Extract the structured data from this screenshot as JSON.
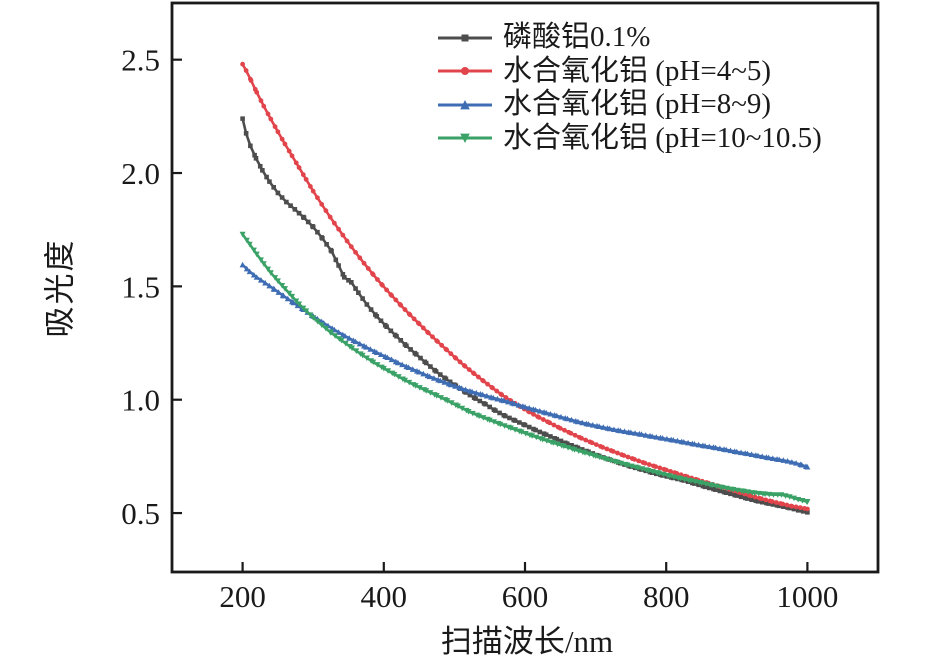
{
  "chart_data": {
    "type": "line",
    "title": "",
    "xlabel": "扫描波长/nm",
    "ylabel": "吸光度",
    "xlim": [
      100,
      1100
    ],
    "ylim": [
      0.24,
      2.75
    ],
    "xticks": [
      200,
      400,
      600,
      800,
      1000
    ],
    "ytick_values": [
      0.5,
      1.0,
      1.5,
      2.0,
      2.5
    ],
    "ytick_labels": [
      "0.5",
      "1.0",
      "1.5",
      "2.0",
      "2.5"
    ],
    "grid": false,
    "legend_position": "top-center-right",
    "axis_color": "#1a1a1a",
    "series": [
      {
        "name": "磷酸铝0.1%",
        "color": "#4d4d4d",
        "marker": "square",
        "points": [
          [
            200,
            2.24
          ],
          [
            205,
            2.175
          ],
          [
            211,
            2.12
          ],
          [
            219,
            2.065
          ],
          [
            228,
            2.012
          ],
          [
            238,
            1.962
          ],
          [
            250,
            1.912
          ],
          [
            262,
            1.872
          ],
          [
            274,
            1.84
          ],
          [
            287,
            1.803
          ],
          [
            300,
            1.762
          ],
          [
            313,
            1.712
          ],
          [
            326,
            1.655
          ],
          [
            336,
            1.592
          ],
          [
            344,
            1.54
          ],
          [
            354,
            1.518
          ],
          [
            364,
            1.472
          ],
          [
            376,
            1.42
          ],
          [
            390,
            1.368
          ],
          [
            404,
            1.322
          ],
          [
            418,
            1.28
          ],
          [
            432,
            1.238
          ],
          [
            446,
            1.2
          ],
          [
            460,
            1.162
          ],
          [
            474,
            1.125
          ],
          [
            488,
            1.092
          ],
          [
            502,
            1.062
          ],
          [
            516,
            1.032
          ],
          [
            530,
            1.005
          ],
          [
            544,
            0.98
          ],
          [
            558,
            0.952
          ],
          [
            572,
            0.928
          ],
          [
            586,
            0.908
          ],
          [
            600,
            0.888
          ],
          [
            615,
            0.866
          ],
          [
            630,
            0.846
          ],
          [
            645,
            0.826
          ],
          [
            660,
            0.806
          ],
          [
            675,
            0.788
          ],
          [
            690,
            0.77
          ],
          [
            705,
            0.752
          ],
          [
            720,
            0.736
          ],
          [
            735,
            0.72
          ],
          [
            750,
            0.705
          ],
          [
            765,
            0.692
          ],
          [
            780,
            0.678
          ],
          [
            795,
            0.666
          ],
          [
            810,
            0.655
          ],
          [
            825,
            0.644
          ],
          [
            840,
            0.63
          ],
          [
            855,
            0.616
          ],
          [
            870,
            0.603
          ],
          [
            885,
            0.59
          ],
          [
            900,
            0.577
          ],
          [
            915,
            0.564
          ],
          [
            930,
            0.552
          ],
          [
            945,
            0.542
          ],
          [
            960,
            0.532
          ],
          [
            975,
            0.522
          ],
          [
            988,
            0.512
          ],
          [
            1000,
            0.503
          ]
        ]
      },
      {
        "name": "水合氧化铝 (pH=4~5)",
        "color": "#e1444a",
        "marker": "circle",
        "points": [
          [
            200,
            2.48
          ],
          [
            205,
            2.452
          ],
          [
            212,
            2.408
          ],
          [
            220,
            2.356
          ],
          [
            230,
            2.295
          ],
          [
            240,
            2.238
          ],
          [
            250,
            2.182
          ],
          [
            260,
            2.128
          ],
          [
            270,
            2.076
          ],
          [
            280,
            2.024
          ],
          [
            290,
            1.972
          ],
          [
            300,
            1.92
          ],
          [
            312,
            1.862
          ],
          [
            324,
            1.806
          ],
          [
            336,
            1.752
          ],
          [
            348,
            1.7
          ],
          [
            360,
            1.65
          ],
          [
            372,
            1.602
          ],
          [
            385,
            1.552
          ],
          [
            398,
            1.505
          ],
          [
            411,
            1.46
          ],
          [
            424,
            1.417
          ],
          [
            437,
            1.375
          ],
          [
            450,
            1.335
          ],
          [
            463,
            1.295
          ],
          [
            476,
            1.257
          ],
          [
            489,
            1.22
          ],
          [
            502,
            1.183
          ],
          [
            515,
            1.148
          ],
          [
            528,
            1.115
          ],
          [
            541,
            1.083
          ],
          [
            554,
            1.052
          ],
          [
            567,
            1.022
          ],
          [
            580,
            0.995
          ],
          [
            593,
            0.97
          ],
          [
            606,
            0.946
          ],
          [
            620,
            0.922
          ],
          [
            635,
            0.898
          ],
          [
            650,
            0.874
          ],
          [
            665,
            0.852
          ],
          [
            680,
            0.83
          ],
          [
            695,
            0.81
          ],
          [
            710,
            0.79
          ],
          [
            725,
            0.772
          ],
          [
            740,
            0.754
          ],
          [
            755,
            0.737
          ],
          [
            770,
            0.72
          ],
          [
            785,
            0.705
          ],
          [
            800,
            0.69
          ],
          [
            815,
            0.675
          ],
          [
            830,
            0.66
          ],
          [
            845,
            0.646
          ],
          [
            860,
            0.632
          ],
          [
            875,
            0.618
          ],
          [
            890,
            0.604
          ],
          [
            905,
            0.59
          ],
          [
            920,
            0.576
          ],
          [
            935,
            0.563
          ],
          [
            950,
            0.551
          ],
          [
            965,
            0.54
          ],
          [
            978,
            0.53
          ],
          [
            990,
            0.524
          ],
          [
            1000,
            0.518
          ]
        ]
      },
      {
        "name": "水合氧化铝 (pH=8~9)",
        "color": "#3f6db4",
        "marker": "triangle-up",
        "points": [
          [
            200,
            1.595
          ],
          [
            210,
            1.565
          ],
          [
            220,
            1.54
          ],
          [
            232,
            1.515
          ],
          [
            245,
            1.487
          ],
          [
            258,
            1.458
          ],
          [
            272,
            1.428
          ],
          [
            286,
            1.398
          ],
          [
            300,
            1.368
          ],
          [
            315,
            1.338
          ],
          [
            330,
            1.308
          ],
          [
            345,
            1.281
          ],
          [
            360,
            1.256
          ],
          [
            375,
            1.232
          ],
          [
            390,
            1.208
          ],
          [
            405,
            1.186
          ],
          [
            420,
            1.163
          ],
          [
            435,
            1.142
          ],
          [
            450,
            1.122
          ],
          [
            465,
            1.102
          ],
          [
            480,
            1.084
          ],
          [
            495,
            1.066
          ],
          [
            510,
            1.05
          ],
          [
            525,
            1.035
          ],
          [
            540,
            1.022
          ],
          [
            555,
            1.008
          ],
          [
            570,
            0.996
          ],
          [
            585,
            0.982
          ],
          [
            600,
            0.968
          ],
          [
            615,
            0.955
          ],
          [
            630,
            0.942
          ],
          [
            645,
            0.929
          ],
          [
            660,
            0.916
          ],
          [
            675,
            0.903
          ],
          [
            690,
            0.892
          ],
          [
            705,
            0.882
          ],
          [
            720,
            0.872
          ],
          [
            735,
            0.863
          ],
          [
            750,
            0.855
          ],
          [
            765,
            0.847
          ],
          [
            780,
            0.838
          ],
          [
            795,
            0.83
          ],
          [
            810,
            0.822
          ],
          [
            825,
            0.813
          ],
          [
            840,
            0.804
          ],
          [
            855,
            0.796
          ],
          [
            870,
            0.788
          ],
          [
            885,
            0.779
          ],
          [
            900,
            0.77
          ],
          [
            915,
            0.762
          ],
          [
            930,
            0.753
          ],
          [
            945,
            0.744
          ],
          [
            960,
            0.736
          ],
          [
            972,
            0.729
          ],
          [
            984,
            0.72
          ],
          [
            992,
            0.712
          ],
          [
            1000,
            0.703
          ]
        ]
      },
      {
        "name": "水合氧化铝 (pH=10~10.5)",
        "color": "#3aa266",
        "marker": "triangle-down",
        "points": [
          [
            200,
            1.73
          ],
          [
            210,
            1.686
          ],
          [
            220,
            1.642
          ],
          [
            230,
            1.6
          ],
          [
            240,
            1.56
          ],
          [
            250,
            1.524
          ],
          [
            260,
            1.49
          ],
          [
            270,
            1.456
          ],
          [
            280,
            1.422
          ],
          [
            290,
            1.392
          ],
          [
            300,
            1.362
          ],
          [
            312,
            1.33
          ],
          [
            325,
            1.296
          ],
          [
            340,
            1.262
          ],
          [
            355,
            1.228
          ],
          [
            370,
            1.196
          ],
          [
            385,
            1.166
          ],
          [
            400,
            1.138
          ],
          [
            415,
            1.112
          ],
          [
            430,
            1.086
          ],
          [
            445,
            1.062
          ],
          [
            460,
            1.04
          ],
          [
            475,
            1.018
          ],
          [
            490,
            0.996
          ],
          [
            505,
            0.972
          ],
          [
            520,
            0.948
          ],
          [
            535,
            0.928
          ],
          [
            550,
            0.91
          ],
          [
            565,
            0.892
          ],
          [
            580,
            0.875
          ],
          [
            595,
            0.858
          ],
          [
            610,
            0.841
          ],
          [
            625,
            0.825
          ],
          [
            640,
            0.81
          ],
          [
            655,
            0.795
          ],
          [
            670,
            0.78
          ],
          [
            685,
            0.766
          ],
          [
            700,
            0.752
          ],
          [
            715,
            0.738
          ],
          [
            730,
            0.725
          ],
          [
            745,
            0.712
          ],
          [
            760,
            0.7
          ],
          [
            775,
            0.688
          ],
          [
            790,
            0.676
          ],
          [
            805,
            0.664
          ],
          [
            820,
            0.653
          ],
          [
            835,
            0.643
          ],
          [
            850,
            0.633
          ],
          [
            865,
            0.623
          ],
          [
            880,
            0.613
          ],
          [
            895,
            0.604
          ],
          [
            910,
            0.596
          ],
          [
            925,
            0.589
          ],
          [
            940,
            0.584
          ],
          [
            952,
            0.581
          ],
          [
            963,
            0.581
          ],
          [
            975,
            0.572
          ],
          [
            987,
            0.56
          ],
          [
            1000,
            0.55
          ]
        ]
      }
    ]
  }
}
